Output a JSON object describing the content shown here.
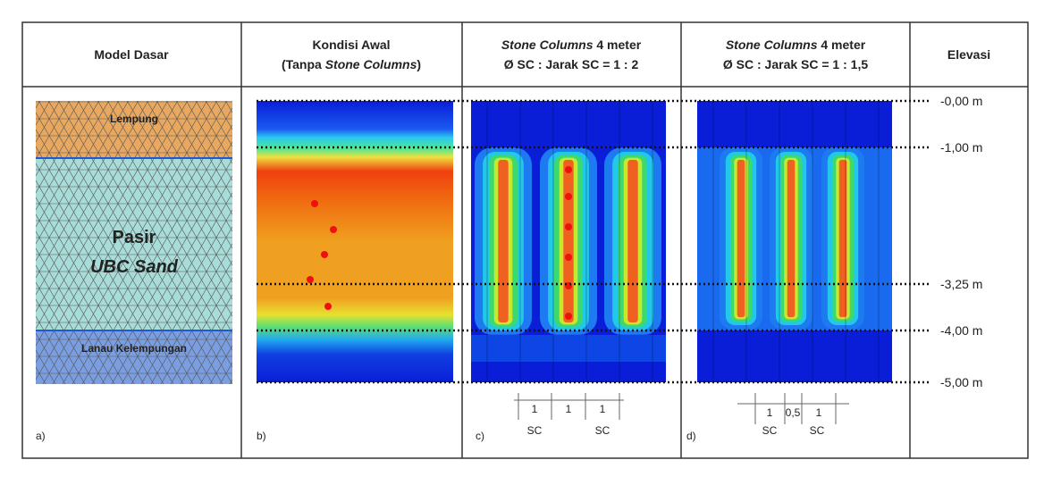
{
  "headers": [
    {
      "lines": [
        [
          {
            "text": "Model Dasar",
            "italic": false
          }
        ]
      ]
    },
    {
      "lines": [
        [
          {
            "text": "Kondisi Awal",
            "italic": false
          }
        ],
        [
          {
            "text": "(Tanpa ",
            "italic": false
          },
          {
            "text": "Stone Columns",
            "italic": true
          },
          {
            "text": ")",
            "italic": false
          }
        ]
      ]
    },
    {
      "lines": [
        [
          {
            "text": "Stone Columns",
            "italic": true
          },
          {
            "text": " 4 meter",
            "italic": false
          }
        ],
        [
          {
            "text": "Ø SC : Jarak SC = 1 : 2",
            "italic": false
          }
        ]
      ]
    },
    {
      "lines": [
        [
          {
            "text": "Stone Columns",
            "italic": true
          },
          {
            "text": " 4 meter",
            "italic": false
          }
        ],
        [
          {
            "text": "Ø SC : Jarak SC = 1 : 1,5",
            "italic": false
          }
        ]
      ]
    },
    {
      "lines": [
        [
          {
            "text": "Elevasi",
            "italic": false
          }
        ]
      ]
    }
  ],
  "model": {
    "layer_top": "Lempung",
    "layer_mid_1": "Pasir",
    "layer_mid_2": "UBC Sand",
    "layer_bottom": "Lanau Kelempungan"
  },
  "panel_labels": [
    "a)",
    "b)",
    "c)",
    "d)"
  ],
  "elevations": [
    "-0,00 m",
    "-1,00 m",
    "-3,25 m",
    "-4,00 m",
    "-5,00 m"
  ],
  "spacing_c": {
    "dims": [
      "1",
      "1",
      "1"
    ],
    "labels": [
      "SC",
      "SC"
    ]
  },
  "spacing_d": {
    "dims": [
      "1",
      "0,5",
      "1"
    ],
    "labels": [
      "SC",
      "SC"
    ]
  }
}
